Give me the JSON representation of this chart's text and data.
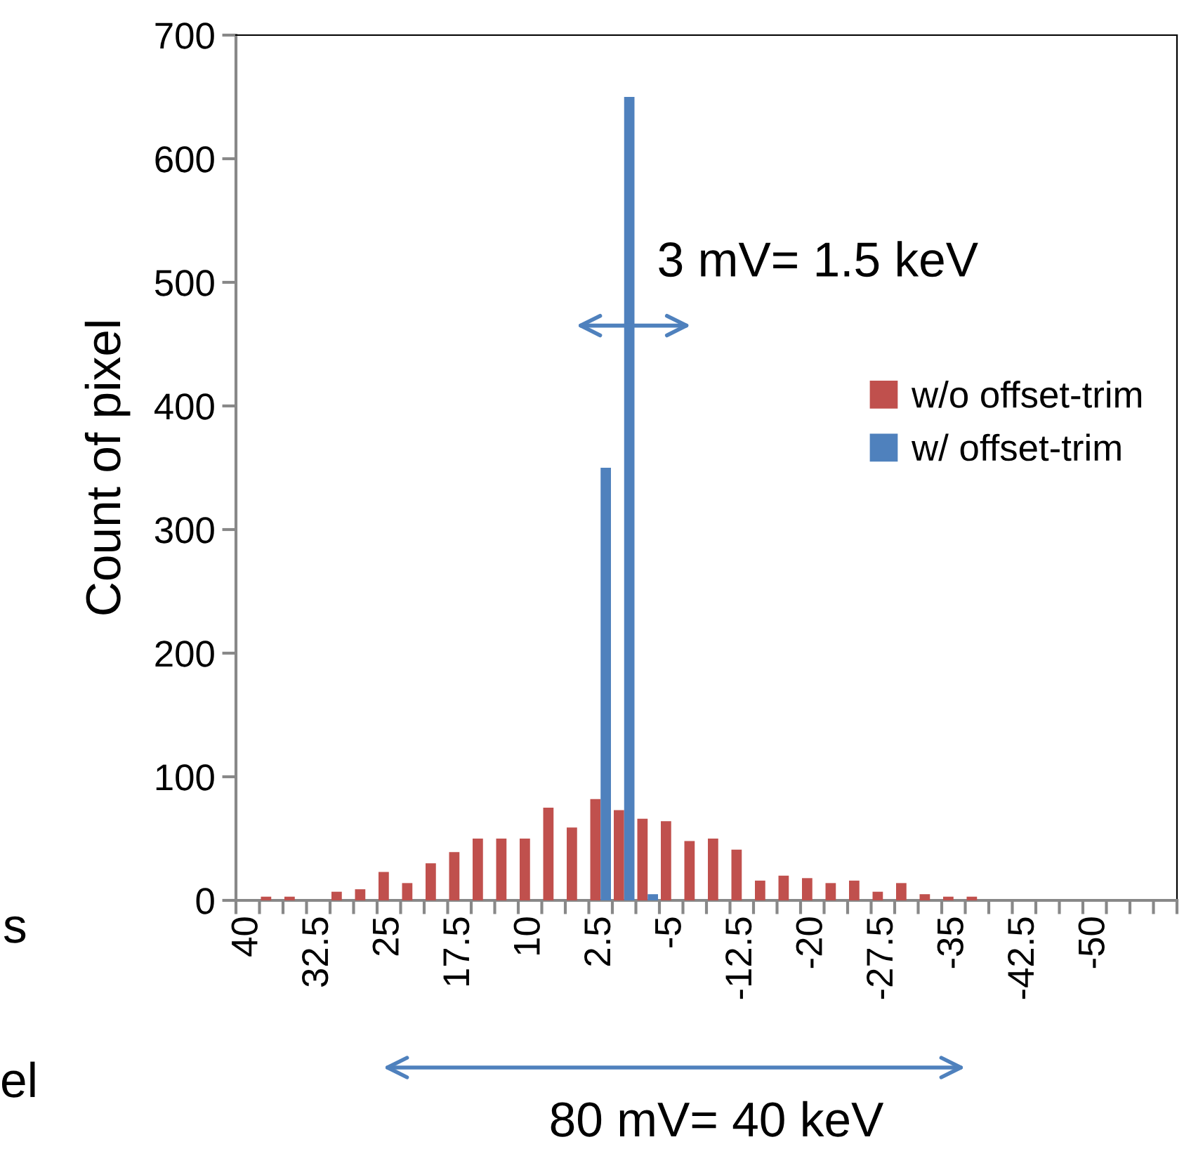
{
  "chart_data": {
    "type": "bar",
    "ylabel": "Count of pixel",
    "categories": [
      "40",
      null,
      null,
      "32.5",
      null,
      null,
      "25",
      null,
      null,
      "17.5",
      null,
      null,
      "10",
      null,
      null,
      "2.5",
      null,
      null,
      "-5",
      null,
      null,
      "-12.5",
      null,
      null,
      "-20",
      null,
      null,
      "-27.5",
      null,
      null,
      "-35",
      null,
      null,
      "-42.5",
      null,
      null,
      "-50",
      null,
      null,
      null
    ],
    "series": [
      {
        "name": "w/o offset-trim",
        "color": "#c0504d",
        "values": [
          0,
          3,
          3,
          0,
          7,
          9,
          23,
          14,
          30,
          39,
          50,
          50,
          50,
          75,
          59,
          82,
          73,
          66,
          64,
          48,
          50,
          41,
          16,
          20,
          18,
          14,
          16,
          7,
          14,
          5,
          3,
          3,
          0,
          0,
          0,
          0,
          0,
          0,
          0,
          0
        ]
      },
      {
        "name": "w/ offset-trim",
        "color": "#4f81bd",
        "values": [
          0,
          0,
          0,
          0,
          0,
          0,
          0,
          0,
          0,
          0,
          0,
          0,
          0,
          0,
          0,
          350,
          650,
          5,
          0,
          0,
          0,
          0,
          0,
          0,
          0,
          0,
          0,
          0,
          0,
          0,
          0,
          0,
          0,
          0,
          0,
          0,
          0,
          0,
          0,
          0
        ]
      }
    ],
    "ylim": [
      0,
      700
    ],
    "yticks": [
      0,
      100,
      200,
      300,
      400,
      500,
      600,
      700
    ],
    "grid": false,
    "legend": "right",
    "annotations": [
      "3 mV= 1.5 keV",
      "80 mV= 40 keV",
      "s",
      "el"
    ]
  }
}
